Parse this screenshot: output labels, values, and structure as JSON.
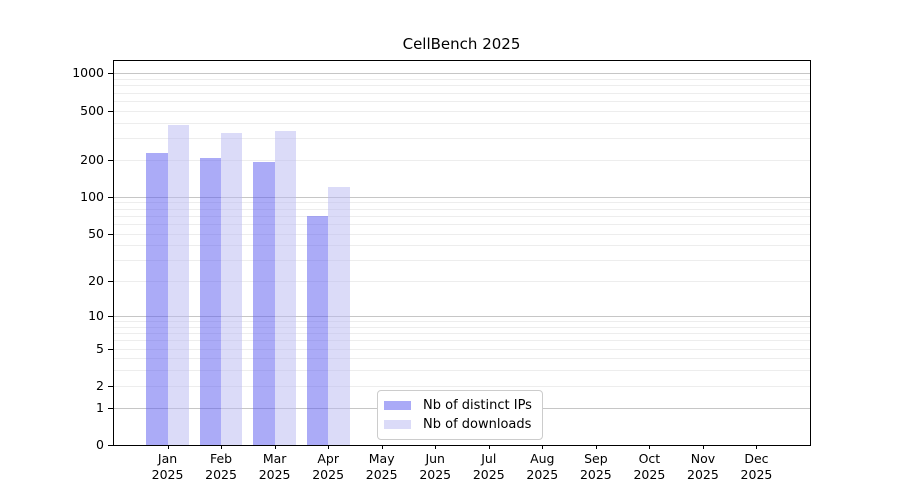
{
  "title": "CellBench 2025",
  "chart_data": {
    "type": "bar",
    "title": "CellBench 2025",
    "yscale": "log1p",
    "ylim": [
      0,
      1260
    ],
    "yticks": [
      0,
      1,
      2,
      5,
      10,
      20,
      50,
      100,
      200,
      500,
      1000
    ],
    "grid": "both",
    "legend_position": "lower center-left inside plot",
    "categories": [
      {
        "month": "Jan",
        "year": "2025"
      },
      {
        "month": "Feb",
        "year": "2025"
      },
      {
        "month": "Mar",
        "year": "2025"
      },
      {
        "month": "Apr",
        "year": "2025"
      },
      {
        "month": "May",
        "year": "2025"
      },
      {
        "month": "Jun",
        "year": "2025"
      },
      {
        "month": "Jul",
        "year": "2025"
      },
      {
        "month": "Aug",
        "year": "2025"
      },
      {
        "month": "Sep",
        "year": "2025"
      },
      {
        "month": "Oct",
        "year": "2025"
      },
      {
        "month": "Nov",
        "year": "2025"
      },
      {
        "month": "Dec",
        "year": "2025"
      }
    ],
    "series": [
      {
        "key": "distinct-ips",
        "name": "Nb of distinct IPs",
        "fill": "rgba(88,88,240,0.5)",
        "legend_color": "#aaaaf7",
        "values": [
          225,
          208,
          192,
          70,
          null,
          null,
          null,
          null,
          null,
          null,
          null,
          null
        ]
      },
      {
        "key": "downloads",
        "name": "Nb of downloads",
        "fill": "rgba(184,184,242,0.5)",
        "legend_color": "#dbdbf8",
        "values": [
          380,
          332,
          341,
          121,
          null,
          null,
          null,
          null,
          null,
          null,
          null,
          null
        ]
      }
    ],
    "colors": {
      "grid_major": "#c6c6c6",
      "grid_minor": "#ededed",
      "spine": "#000000",
      "text": "#000000"
    }
  }
}
